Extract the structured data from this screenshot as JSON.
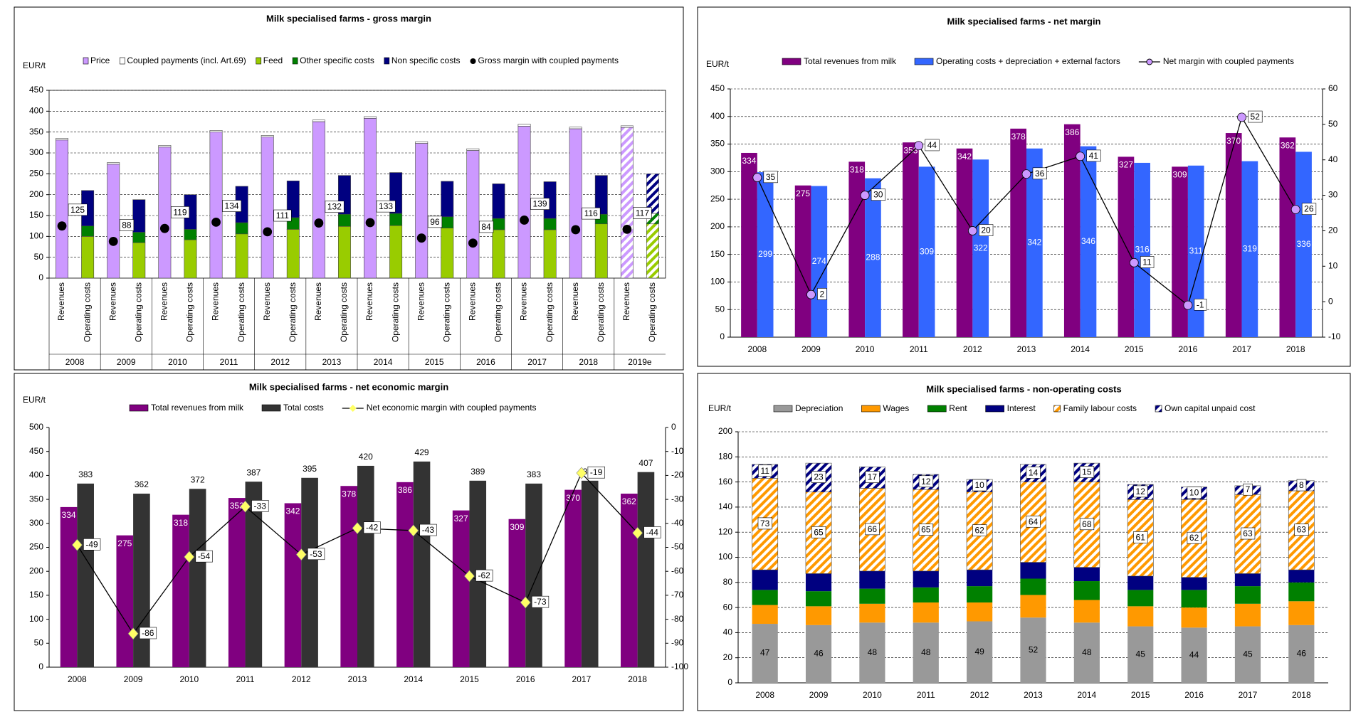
{
  "chart_data": [
    {
      "type": "bar",
      "title": "Milk specialised farms - gross margin",
      "y_label": "EUR/t",
      "categories": [
        "2008",
        "2009",
        "2010",
        "2011",
        "2012",
        "2013",
        "2014",
        "2015",
        "2016",
        "2017",
        "2018",
        "2019e"
      ],
      "groups": [
        "Revenues",
        "Operating costs"
      ],
      "hatch_last": true,
      "grid": true,
      "ylim": [
        0,
        450
      ],
      "yticks": [
        0,
        50,
        100,
        150,
        200,
        250,
        300,
        350,
        400,
        450
      ],
      "series": [
        {
          "name": "Price",
          "type": "bar",
          "group": 0,
          "color": "#cc99ff",
          "values": [
            331,
            273,
            314,
            350,
            338,
            375,
            383,
            323,
            306,
            364,
            358,
            361
          ]
        },
        {
          "name": "Coupled payments (incl. Art.69)",
          "type": "bar",
          "group": 0,
          "color": "#ffffff",
          "values": [
            4,
            4,
            4,
            4,
            4,
            4,
            4,
            4,
            4,
            5,
            4,
            4
          ]
        },
        {
          "name": "Feed",
          "type": "bar",
          "group": 1,
          "color": "#99cc00",
          "values": [
            100,
            85,
            92,
            106,
            117,
            124,
            126,
            120,
            116,
            116,
            130,
            130
          ]
        },
        {
          "name": "Other specific costs",
          "type": "bar",
          "group": 1,
          "color": "#008000",
          "values": [
            25,
            25,
            25,
            27,
            28,
            29,
            29,
            27,
            27,
            27,
            23,
            25
          ]
        },
        {
          "name": "Non specific costs",
          "type": "bar",
          "group": 1,
          "color": "#000080",
          "values": [
            85,
            78,
            83,
            87,
            88,
            93,
            98,
            85,
            83,
            88,
            93,
            95
          ]
        },
        {
          "name": "Gross margin with coupled payments",
          "type": "scatter",
          "group": 0,
          "color": "#000000",
          "marker": "circle",
          "marker_color": "#000000",
          "label_pos": "box-right",
          "values": [
            125,
            88,
            119,
            134,
            111,
            132,
            133,
            96,
            84,
            139,
            116,
            117
          ]
        }
      ]
    },
    {
      "type": "bar",
      "title": "Milk specialised farms - net margin",
      "y_label": "EUR/t",
      "categories": [
        "2008",
        "2009",
        "2010",
        "2011",
        "2012",
        "2013",
        "2014",
        "2015",
        "2016",
        "2017",
        "2018"
      ],
      "grid": true,
      "ylim": [
        0,
        450
      ],
      "yticks": [
        0,
        50,
        100,
        150,
        200,
        250,
        300,
        350,
        400,
        450
      ],
      "y2lim": [
        -10,
        60
      ],
      "y2ticks": [
        -10,
        0,
        10,
        20,
        30,
        40,
        50,
        60
      ],
      "series": [
        {
          "name": "Total revenues from milk",
          "type": "bar",
          "group": 0,
          "color": "#800080",
          "label_pos": "top-inside",
          "values": [
            334,
            275,
            318,
            353,
            342,
            378,
            386,
            327,
            309,
            370,
            362
          ]
        },
        {
          "name": "Operating costs + depreciation + external factors",
          "type": "bar",
          "group": 1,
          "color": "#3366ff",
          "label_pos": "mid",
          "values": [
            299,
            274,
            288,
            309,
            322,
            342,
            346,
            316,
            311,
            319,
            336
          ]
        },
        {
          "name": "Net margin with coupled payments",
          "type": "line",
          "axis": "y2",
          "color": "#000000",
          "marker": "circle",
          "marker_color": "#cc99ff",
          "label_pos": "box-right",
          "values": [
            35,
            2,
            30,
            44,
            20,
            36,
            41,
            11,
            -1,
            52,
            26
          ]
        }
      ]
    },
    {
      "type": "bar",
      "title": "Milk specialised farms - net economic margin",
      "y_label": "EUR/t",
      "categories": [
        "2008",
        "2009",
        "2010",
        "2011",
        "2012",
        "2013",
        "2014",
        "2015",
        "2016",
        "2017",
        "2018"
      ],
      "grid": false,
      "ylim": [
        0,
        500
      ],
      "yticks": [
        0,
        50,
        100,
        150,
        200,
        250,
        300,
        350,
        400,
        450,
        500
      ],
      "y2lim": [
        -100,
        0
      ],
      "y2ticks": [
        -100,
        -90,
        -80,
        -70,
        -60,
        -50,
        -40,
        -30,
        -20,
        -10,
        0
      ],
      "series": [
        {
          "name": "Total revenues from milk",
          "type": "bar",
          "group": 0,
          "color": "#800080",
          "label_pos": "top-inside",
          "values": [
            334,
            275,
            318,
            353,
            342,
            378,
            386,
            327,
            309,
            370,
            362
          ]
        },
        {
          "name": "Total costs",
          "type": "bar",
          "group": 1,
          "color": "#333333",
          "label_pos": "above",
          "values": [
            383,
            362,
            372,
            387,
            395,
            420,
            429,
            389,
            383,
            389,
            407
          ]
        },
        {
          "name": "Net economic margin with coupled payments",
          "type": "line",
          "axis": "y2",
          "color": "#000000",
          "marker": "diamond",
          "marker_color": "#ffff66",
          "label_pos": "box-right",
          "values": [
            -49,
            -86,
            -54,
            -33,
            -53,
            -42,
            -43,
            -62,
            -73,
            -19,
            -44
          ]
        }
      ]
    },
    {
      "type": "bar",
      "title": "Milk specialised farms - non-operating costs",
      "y_label": "EUR/t",
      "categories": [
        "2008",
        "2009",
        "2010",
        "2011",
        "2012",
        "2013",
        "2014",
        "2015",
        "2016",
        "2017",
        "2018"
      ],
      "grid": true,
      "ylim": [
        0,
        200
      ],
      "yticks": [
        0,
        20,
        40,
        60,
        80,
        100,
        120,
        140,
        160,
        180,
        200
      ],
      "series": [
        {
          "name": "Depreciation",
          "type": "bar",
          "group": 0,
          "color": "#999999",
          "label_pos": "mid-dark",
          "values": [
            47,
            46,
            48,
            48,
            49,
            52,
            48,
            45,
            44,
            45,
            46
          ]
        },
        {
          "name": "Wages",
          "type": "bar",
          "group": 0,
          "color": "#ff9900",
          "values": [
            15,
            15,
            15,
            16,
            15,
            18,
            18,
            16,
            16,
            18,
            19
          ]
        },
        {
          "name": "Rent",
          "type": "bar",
          "group": 0,
          "color": "#008000",
          "values": [
            12,
            12,
            12,
            12,
            13,
            13,
            15,
            13,
            14,
            14,
            15
          ]
        },
        {
          "name": "Interest",
          "type": "bar",
          "group": 0,
          "color": "#000080",
          "values": [
            16,
            14,
            14,
            13,
            13,
            13,
            11,
            11,
            10,
            10,
            10
          ]
        },
        {
          "name": "Family labour costs",
          "type": "bar",
          "group": 0,
          "color": "#ff9900",
          "hatch": true,
          "label_pos": "mid-box",
          "values": [
            73,
            65,
            66,
            65,
            62,
            64,
            68,
            61,
            62,
            63,
            63
          ]
        },
        {
          "name": "Own capital unpaid cost",
          "type": "bar",
          "group": 0,
          "color": "#000080",
          "hatch": true,
          "label_pos": "mid-box",
          "values": [
            11,
            23,
            17,
            12,
            10,
            14,
            15,
            12,
            10,
            7,
            8
          ]
        }
      ]
    }
  ]
}
